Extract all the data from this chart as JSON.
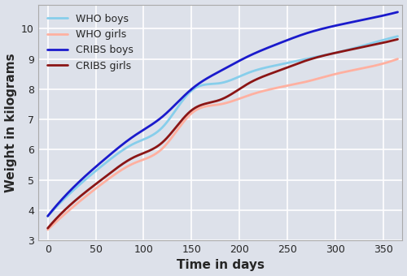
{
  "xlabel": "Time in days",
  "ylabel": "Weight in kilograms",
  "xlim": [
    -10,
    370
  ],
  "ylim": [
    3,
    10.8
  ],
  "xticks": [
    0,
    50,
    100,
    150,
    200,
    250,
    300,
    350
  ],
  "yticks": [
    3,
    4,
    5,
    6,
    7,
    8,
    9,
    10
  ],
  "series": [
    {
      "label": "WHO boys",
      "color": "#87CEEB",
      "linewidth": 2.0,
      "x": [
        0,
        30,
        60,
        90,
        120,
        150,
        180,
        210,
        240,
        270,
        300,
        330,
        365
      ],
      "y": [
        3.8,
        4.75,
        5.55,
        6.2,
        6.75,
        7.95,
        8.2,
        8.55,
        8.8,
        9.0,
        9.2,
        9.45,
        9.75
      ]
    },
    {
      "label": "WHO girls",
      "color": "#FFB0A0",
      "linewidth": 2.0,
      "x": [
        0,
        30,
        60,
        90,
        120,
        150,
        180,
        210,
        240,
        270,
        300,
        330,
        365
      ],
      "y": [
        3.35,
        4.2,
        4.95,
        5.55,
        6.05,
        7.2,
        7.5,
        7.8,
        8.05,
        8.25,
        8.5,
        8.7,
        9.0
      ]
    },
    {
      "label": "CRIBS boys",
      "color": "#1a1acc",
      "linewidth": 2.0,
      "x": [
        0,
        30,
        60,
        90,
        120,
        150,
        180,
        210,
        240,
        270,
        300,
        330,
        365
      ],
      "y": [
        3.8,
        4.85,
        5.7,
        6.45,
        7.1,
        8.0,
        8.6,
        9.1,
        9.5,
        9.85,
        10.1,
        10.3,
        10.55
      ]
    },
    {
      "label": "CRIBS girls",
      "color": "#8B1515",
      "linewidth": 2.0,
      "x": [
        0,
        30,
        60,
        90,
        120,
        150,
        180,
        210,
        240,
        270,
        300,
        330,
        365
      ],
      "y": [
        3.4,
        4.35,
        5.1,
        5.75,
        6.25,
        7.3,
        7.65,
        8.2,
        8.6,
        8.95,
        9.2,
        9.4,
        9.65
      ]
    }
  ],
  "bg_color": "#dde1ea",
  "grid_color": "white",
  "legend_loc": "upper left",
  "legend_fontsize": 9,
  "tick_fontsize": 9,
  "label_fontsize": 11
}
